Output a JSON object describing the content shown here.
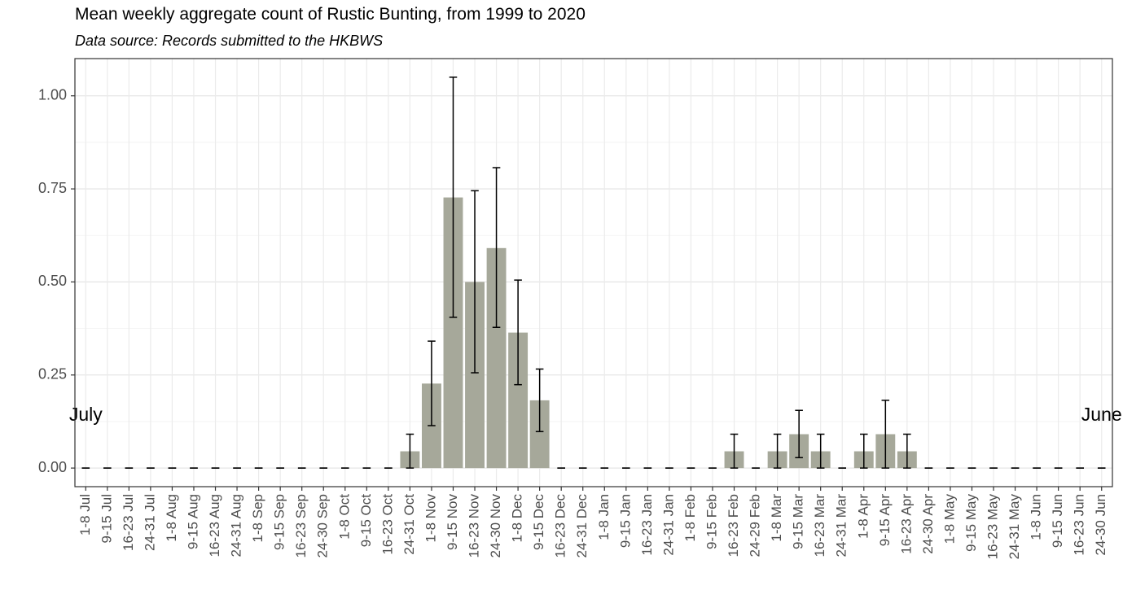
{
  "chart_data": {
    "type": "bar",
    "title": "Mean weekly aggregate count of Rustic Bunting, from 1999 to 2020",
    "subtitle": "Data source: Records submitted to the HKBWS",
    "xlabel": "",
    "ylabel": "",
    "ylim": [
      -0.05,
      1.1
    ],
    "yticks": [
      0.0,
      0.25,
      0.5,
      0.75,
      1.0
    ],
    "ytick_labels": [
      "0.00",
      "0.25",
      "0.50",
      "0.75",
      "1.00"
    ],
    "grid": true,
    "bar_color": "#a6a89a",
    "error_color": "#000000",
    "annotations": [
      {
        "text": "July",
        "category": "1-8 Jul",
        "y": 0.14
      },
      {
        "text": "June",
        "category": "24-30 Jun",
        "y": 0.14
      }
    ],
    "categories": [
      "1-8 Jul",
      "9-15 Jul",
      "16-23 Jul",
      "24-31 Jul",
      "1-8 Aug",
      "9-15 Aug",
      "16-23 Aug",
      "24-31 Aug",
      "1-8 Sep",
      "9-15 Sep",
      "16-23 Sep",
      "24-30 Sep",
      "1-8 Oct",
      "9-15 Oct",
      "16-23 Oct",
      "24-31 Oct",
      "1-8 Nov",
      "9-15 Nov",
      "16-23 Nov",
      "24-30 Nov",
      "1-8 Dec",
      "9-15 Dec",
      "16-23 Dec",
      "24-31 Dec",
      "1-8 Jan",
      "9-15 Jan",
      "16-23 Jan",
      "24-31 Jan",
      "1-8 Feb",
      "9-15 Feb",
      "16-23 Feb",
      "24-29 Feb",
      "1-8 Mar",
      "9-15 Mar",
      "16-23 Mar",
      "24-31 Mar",
      "1-8 Apr",
      "9-15 Apr",
      "16-23 Apr",
      "24-30 Apr",
      "1-8 May",
      "9-15 May",
      "16-23 May",
      "24-31 May",
      "1-8 Jun",
      "9-15 Jun",
      "16-23 Jun",
      "24-30 Jun"
    ],
    "values": [
      0,
      0,
      0,
      0,
      0,
      0,
      0,
      0,
      0,
      0,
      0,
      0,
      0,
      0,
      0,
      0.045,
      0.227,
      0.727,
      0.5,
      0.591,
      0.364,
      0.182,
      0,
      0,
      0,
      0,
      0,
      0,
      0,
      0,
      0.045,
      0,
      0.045,
      0.091,
      0.045,
      0,
      0.045,
      0.091,
      0.045,
      0,
      0,
      0,
      0,
      0,
      0,
      0,
      0,
      0
    ],
    "error_low": [
      0,
      0,
      0,
      0,
      0,
      0,
      0,
      0,
      0,
      0,
      0,
      0,
      0,
      0,
      0,
      0,
      0.114,
      0.405,
      0.256,
      0.378,
      0.224,
      0.098,
      0,
      0,
      0,
      0,
      0,
      0,
      0,
      0,
      0,
      0,
      0,
      0.028,
      0,
      0,
      0,
      0,
      0,
      0,
      0,
      0,
      0,
      0,
      0,
      0,
      0,
      0
    ],
    "error_high": [
      0,
      0,
      0,
      0,
      0,
      0,
      0,
      0,
      0,
      0,
      0,
      0,
      0,
      0,
      0,
      0.091,
      0.341,
      1.05,
      0.745,
      0.807,
      0.505,
      0.266,
      0,
      0,
      0,
      0,
      0,
      0,
      0,
      0,
      0.091,
      0,
      0.091,
      0.155,
      0.091,
      0,
      0.091,
      0.182,
      0.091,
      0,
      0,
      0,
      0,
      0,
      0,
      0,
      0,
      0
    ]
  }
}
